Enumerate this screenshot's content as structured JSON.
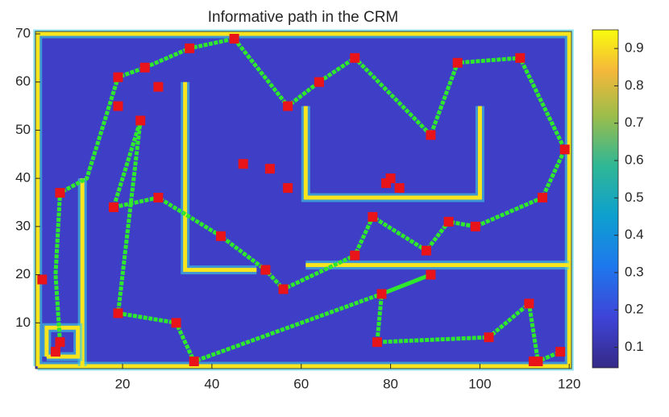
{
  "chart_data": {
    "type": "path-map",
    "title": "Informative path in the CRM",
    "xlim": [
      0.5,
      120.5
    ],
    "xticks": [
      20,
      40,
      60,
      80,
      100,
      120
    ],
    "ylim": [
      0.5,
      70.5
    ],
    "yticks": [
      10,
      20,
      30,
      40,
      50,
      60,
      70
    ],
    "clim": [
      0.045,
      0.95
    ],
    "cticks": [
      0.1,
      0.2,
      0.3,
      0.4,
      0.5,
      0.6,
      0.7,
      0.8,
      0.9
    ],
    "background_color": "#3e3fc6",
    "wall_color": "#f9e51e",
    "path_color": "#2ee82e",
    "point_color": "#e8141a",
    "walls": [
      {
        "x": [
          1,
          120,
          120,
          1,
          1
        ],
        "y": [
          1,
          1,
          70,
          70,
          1
        ]
      },
      {
        "x": [
          34,
          34,
          50
        ],
        "y": [
          60,
          21,
          21
        ]
      },
      {
        "x": [
          61,
          61,
          100,
          100
        ],
        "y": [
          55,
          36,
          36,
          55
        ]
      },
      {
        "x": [
          61,
          120
        ],
        "y": [
          22,
          22
        ]
      },
      {
        "x": [
          11,
          11
        ],
        "y": [
          1,
          40
        ]
      },
      {
        "x": [
          3,
          10,
          10,
          3,
          3
        ],
        "y": [
          3,
          3,
          9,
          9,
          3
        ]
      }
    ],
    "path": {
      "x": [
        6,
        5,
        6,
        12,
        19,
        25,
        35,
        45,
        57,
        64,
        72,
        89,
        95,
        109,
        119,
        114,
        99,
        93,
        88,
        76,
        72,
        56,
        52,
        42,
        28,
        18,
        24,
        19,
        32,
        36,
        78,
        89,
        78,
        77,
        102,
        111,
        113,
        118
      ],
      "y": [
        6,
        20,
        37,
        40,
        61,
        63,
        67,
        69,
        55,
        60,
        65,
        49,
        64,
        65,
        46,
        36,
        30,
        31,
        25,
        32,
        24,
        17,
        21,
        28,
        36,
        34,
        52,
        12,
        10,
        2,
        16,
        20,
        16,
        6,
        7,
        14,
        2,
        4
      ]
    },
    "points": {
      "x": [
        2,
        5,
        6,
        6,
        18,
        19,
        19,
        19,
        24,
        25,
        28,
        28,
        32,
        35,
        36,
        42,
        45,
        52,
        53,
        57,
        57,
        56,
        47,
        64,
        72,
        72,
        76,
        77,
        79,
        80,
        82,
        78,
        88,
        89,
        89,
        93,
        95,
        99,
        102,
        109,
        111,
        112,
        113,
        114,
        118,
        119
      ],
      "y": [
        19,
        4,
        6,
        37,
        34,
        61,
        55,
        12,
        52,
        63,
        59,
        36,
        10,
        67,
        2,
        28,
        69,
        21,
        42,
        55,
        38,
        17,
        43,
        60,
        65,
        24,
        32,
        6,
        39,
        40,
        38,
        16,
        25,
        20,
        49,
        31,
        64,
        30,
        7,
        65,
        14,
        2,
        2,
        36,
        4,
        46
      ]
    }
  }
}
